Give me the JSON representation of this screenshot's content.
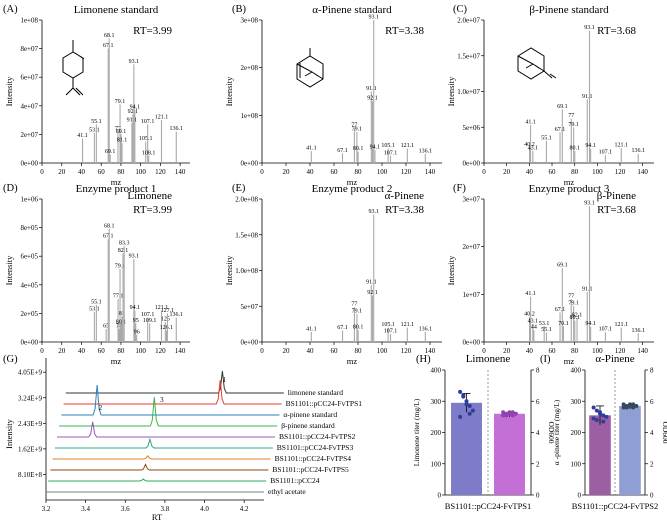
{
  "ms_panels": [
    {
      "letter": "(A)",
      "title": "Limonene standard",
      "compound": "",
      "rt": "RT=3.99",
      "ylabel": "Intensity",
      "xlabel": "mz",
      "yticks": [
        "0e+00",
        "2e+07",
        "4e+07",
        "6e+07",
        "8e+07",
        "1e+08"
      ],
      "ymax": 100,
      "peaks": [
        [
          41.1,
          17,
          "41.1"
        ],
        [
          53.1,
          21,
          "53.1"
        ],
        [
          55.1,
          27,
          "55.1"
        ],
        [
          67.1,
          80,
          "67.1"
        ],
        [
          68.1,
          87,
          "68.1"
        ],
        [
          69.1,
          6,
          "69.1"
        ],
        [
          77,
          22,
          "77"
        ],
        [
          79.1,
          41,
          "79.1"
        ],
        [
          80.1,
          20,
          "80.1"
        ],
        [
          81.1,
          14,
          "81.1"
        ],
        [
          91.1,
          28,
          "91.1"
        ],
        [
          92.1,
          34,
          "92.1"
        ],
        [
          93.1,
          69,
          "93.1"
        ],
        [
          94.1,
          37,
          "94.1"
        ],
        [
          105.1,
          15,
          "105.1"
        ],
        [
          107.1,
          27,
          "107.1"
        ],
        [
          108.1,
          5,
          "108.1"
        ],
        [
          121.1,
          30,
          "121.1"
        ],
        [
          136.1,
          22,
          "136.1"
        ]
      ]
    },
    {
      "letter": "(B)",
      "title": "α-Pinene standard",
      "compound": "",
      "rt": "RT=3.38",
      "ylabel": "Intensity",
      "xlabel": "mz",
      "yticks": [
        "0e+00",
        "1e+08",
        "2e+08",
        "3e+08"
      ],
      "ymax": 300,
      "peaks": [
        [
          41.1,
          25,
          "41.1"
        ],
        [
          67.1,
          20,
          "67.1"
        ],
        [
          77,
          73,
          "77"
        ],
        [
          79.1,
          65,
          "79.1"
        ],
        [
          80.1,
          24,
          "80.1"
        ],
        [
          91.1,
          150,
          "91.1"
        ],
        [
          92.1,
          130,
          "92.1"
        ],
        [
          93.1,
          300,
          "93.1"
        ],
        [
          94.1,
          27,
          "94.1"
        ],
        [
          105.1,
          30,
          "105.1"
        ],
        [
          107.1,
          15,
          "107.1"
        ],
        [
          121.1,
          30,
          "121.1"
        ],
        [
          136.1,
          19,
          "136.1"
        ]
      ]
    },
    {
      "letter": "(C)",
      "title": "β-Pinene standard",
      "compound": "",
      "rt": "RT=3.68",
      "ylabel": "Intensity",
      "xlabel": "mz",
      "yticks": [
        "0e+00",
        "5e+06",
        "1.0e+07",
        "1.5e+07",
        "2.0e+07"
      ],
      "ymax": 20,
      "peaks": [
        [
          40.2,
          2.2,
          "40.2"
        ],
        [
          41.1,
          5.3,
          "41.1"
        ],
        [
          43.1,
          1.7,
          "43.1"
        ],
        [
          55.1,
          3.1,
          "55.1"
        ],
        [
          67.1,
          4.3,
          "67.1"
        ],
        [
          69.1,
          7.5,
          "69.1"
        ],
        [
          77,
          6.2,
          "77"
        ],
        [
          79.1,
          5.0,
          "79.1"
        ],
        [
          80.1,
          1.7,
          "80.1"
        ],
        [
          91.1,
          8.9,
          "91.1"
        ],
        [
          93.1,
          18.5,
          "93.1"
        ],
        [
          94.1,
          2.0,
          "94.1"
        ],
        [
          107.1,
          1.1,
          "107.1"
        ],
        [
          121.1,
          2.1,
          "121.1"
        ],
        [
          136.1,
          1.3,
          "136.1"
        ]
      ]
    },
    {
      "letter": "(D)",
      "title": "Enzyme product 1",
      "compound": "Limonene",
      "rt": "RT=3.99",
      "ylabel": "Intensity",
      "xlabel": "mz",
      "yticks": [
        "0e+00",
        "2e+05",
        "4e+05",
        "6e+05",
        "8e+05",
        "1e+06"
      ],
      "ymax": 100,
      "peaks": [
        [
          53.1,
          21,
          "53.1"
        ],
        [
          55.1,
          26,
          "55.1"
        ],
        [
          65,
          9,
          "65"
        ],
        [
          67.1,
          72,
          "67.1"
        ],
        [
          68.1,
          79,
          "68.1"
        ],
        [
          77.1,
          30,
          "77.1"
        ],
        [
          78,
          9,
          "78"
        ],
        [
          79.1,
          51,
          "79.1"
        ],
        [
          80.1,
          12,
          "80.1"
        ],
        [
          81,
          18,
          "81"
        ],
        [
          82.1,
          62,
          "82.1"
        ],
        [
          83.3,
          67,
          "83.3"
        ],
        [
          93.1,
          58,
          "93.1"
        ],
        [
          94.1,
          22,
          "94.1"
        ],
        [
          95,
          13,
          "95"
        ],
        [
          96,
          5,
          "96"
        ],
        [
          107.1,
          17,
          "107.1"
        ],
        [
          109.1,
          13,
          "109.1"
        ],
        [
          121.1,
          22,
          "121.1"
        ],
        [
          125,
          14,
          "125"
        ],
        [
          126.1,
          8,
          "126.1"
        ],
        [
          127.1,
          20,
          "127.1"
        ],
        [
          136.1,
          17,
          "136.1"
        ]
      ]
    },
    {
      "letter": "(E)",
      "title": "Enzyme product 2",
      "compound": "α-Pinene",
      "rt": "RT=3.38",
      "ylabel": "Intensity",
      "xlabel": "mz",
      "yticks": [
        "0e+00",
        "5e+07",
        "1.0e+08",
        "1.5e+08",
        "2.0e+08"
      ],
      "ymax": 200,
      "peaks": [
        [
          41.1,
          14,
          "41.1"
        ],
        [
          67.1,
          16,
          "67.1"
        ],
        [
          77,
          49,
          "77"
        ],
        [
          79.1,
          39,
          "79.1"
        ],
        [
          80.1,
          17,
          "80.1"
        ],
        [
          91.1,
          80,
          "91.1"
        ],
        [
          92.1,
          65,
          "92.1"
        ],
        [
          93.1,
          178,
          "93.1"
        ],
        [
          105.1,
          20,
          "105.1"
        ],
        [
          107.1,
          11,
          "107.1"
        ],
        [
          121.1,
          20,
          "121.1"
        ],
        [
          136.1,
          14,
          "136.1"
        ]
      ]
    },
    {
      "letter": "(F)",
      "title": "Enzyme product 3",
      "compound": "β-Pinene",
      "rt": "RT=3.68",
      "ylabel": "Intensity",
      "xlabel": "mz",
      "yticks": [
        "0e+00",
        "1e+07",
        "2e+07",
        "3e+07"
      ],
      "ymax": 30,
      "peaks": [
        [
          40.2,
          5.2,
          "40.2"
        ],
        [
          41.1,
          9.5,
          "41.1"
        ],
        [
          43.1,
          3.8,
          "43.1"
        ],
        [
          44,
          2.5,
          "44"
        ],
        [
          53.1,
          3.3,
          "53.1"
        ],
        [
          55.1,
          2.0,
          "55.1"
        ],
        [
          67.1,
          6.2,
          "67.1"
        ],
        [
          69.1,
          15.5,
          "69.1"
        ],
        [
          70.1,
          3.3,
          "70.1"
        ],
        [
          77,
          9.0,
          "77"
        ],
        [
          79.1,
          7.6,
          "79.1"
        ],
        [
          80.1,
          4.5,
          "80.1"
        ],
        [
          82.1,
          5.0,
          "82.1"
        ],
        [
          91.1,
          10.5,
          "91.1"
        ],
        [
          93.1,
          28.5,
          "93.1"
        ],
        [
          94.1,
          3.2,
          "94.1"
        ],
        [
          107.1,
          2.1,
          "107.1"
        ],
        [
          121.1,
          3.0,
          "121.1"
        ],
        [
          136.1,
          1.8,
          "136.1"
        ]
      ]
    }
  ],
  "panel_g": {
    "letter": "(G)",
    "ylabel": "Intensity",
    "xlabel": "RT",
    "yticks": [
      "8.10E+8",
      "1.62E+9",
      "2.43E+9",
      "3.24E+9",
      "4.05E+9"
    ],
    "xticks": [
      "3.2",
      "3.4",
      "3.6",
      "3.8",
      "4.0",
      "4.2"
    ],
    "traces": [
      {
        "name": "limonene standard",
        "color": "#333333",
        "peaks": [
          [
            3.99,
            0.55
          ]
        ]
      },
      {
        "name": "BS1101::pCC24-FvTPS1",
        "color": "#e8382f",
        "peaks": [
          [
            3.99,
            0.6
          ]
        ]
      },
      {
        "name": "α-pinene standard",
        "color": "#2c7fbf",
        "peaks": [
          [
            3.38,
            0.75
          ]
        ]
      },
      {
        "name": "β-pinene standard",
        "color": "#3cb44b",
        "peaks": [
          [
            3.68,
            0.72
          ]
        ]
      },
      {
        "name": "BS1101::pCC24-FvTPS2",
        "color": "#9b59b6",
        "peaks": [
          [
            3.38,
            0.38
          ]
        ]
      },
      {
        "name": "BS1101::pCC24-FvTPS3",
        "color": "#2ca58d",
        "peaks": [
          [
            3.68,
            0.22
          ]
        ]
      },
      {
        "name": "BS1101::pCC24-FvTPS4",
        "color": "#e67e22",
        "peaks": [
          [
            3.68,
            0.08
          ]
        ]
      },
      {
        "name": "BS1101::pCC24-FvTPS5",
        "color": "#8b4513",
        "peaks": [
          [
            3.68,
            0.14
          ]
        ]
      },
      {
        "name": "BS1101::pCC24",
        "color": "#27ae60",
        "peaks": [
          [
            3.68,
            0.05
          ]
        ]
      },
      {
        "name": "ethyl acetate",
        "color": "#7f7f7f",
        "peaks": []
      }
    ],
    "markers": [
      {
        "text": "1",
        "color": "#e8382f"
      },
      {
        "text": "2",
        "color": "#9b59b6"
      },
      {
        "text": "3",
        "color": "#3cb44b"
      }
    ]
  },
  "bar_panels": [
    {
      "letter": "(H)",
      "title": "Limonene",
      "ylabel": "Limonene titer (mg/L)",
      "y2label": "OD600",
      "yticks": [
        "0",
        "100",
        "200",
        "300",
        "400"
      ],
      "ymax": 400,
      "y2ticks": [
        "0",
        "2",
        "4",
        "6",
        "8"
      ],
      "y2max": 8,
      "titer": 295,
      "od": 5.2,
      "titer_points": [
        330,
        315,
        300,
        285,
        270,
        250,
        320,
        290,
        260
      ],
      "xlabel": "BS1101::pCC24-FvTPS1",
      "c1": "#7e7bc8",
      "c2": "#c36fd6"
    },
    {
      "letter": "(I)",
      "title": "α-Pinene",
      "ylabel": "α -pinene titer (mg/L)",
      "y2label": "OD600",
      "yticks": [
        "0",
        "100",
        "200",
        "300",
        "400"
      ],
      "ymax": 400,
      "y2ticks": [
        "0",
        "2",
        "4",
        "6",
        "8"
      ],
      "y2max": 8,
      "titer": 255,
      "od": 5.7,
      "titer_points": [
        280,
        270,
        260,
        255,
        250,
        245,
        240,
        265,
        235
      ],
      "xlabel": "BS1101::pCC24-FvTPS2",
      "c1": "#9c5fa3",
      "c2": "#8f9fd6"
    }
  ]
}
